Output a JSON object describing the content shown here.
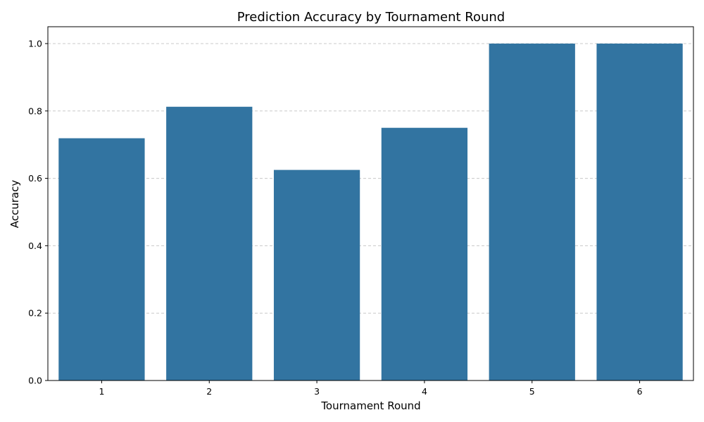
{
  "chart_data": {
    "type": "bar",
    "title": "Prediction Accuracy by Tournament Round",
    "xlabel": "Tournament Round",
    "ylabel": "Accuracy",
    "categories": [
      "1",
      "2",
      "3",
      "4",
      "5",
      "6"
    ],
    "values": [
      0.719,
      0.8125,
      0.625,
      0.75,
      1.0,
      1.0
    ],
    "ylim": [
      0,
      1.05
    ],
    "yticks": [
      "0.0",
      "0.2",
      "0.4",
      "0.6",
      "0.8",
      "1.0"
    ],
    "grid": "y-dashed",
    "bar_color": "#3274a1",
    "grid_color": "#c8c8c8"
  }
}
